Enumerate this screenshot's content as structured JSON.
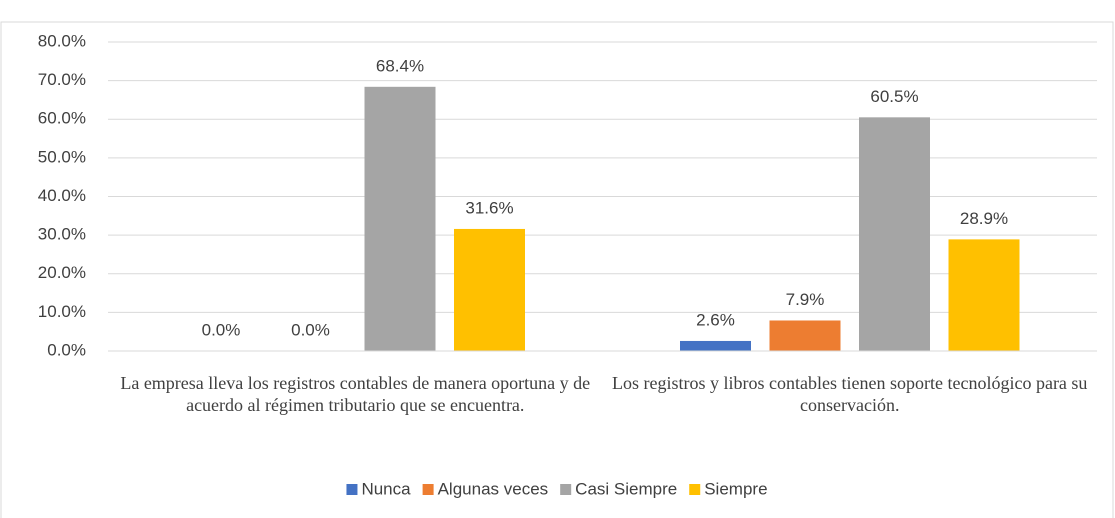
{
  "chart_data": {
    "type": "bar",
    "categories": [
      "La empresa lleva los registros contables de manera oportuna y de acuerdo al régimen tributario que se encuentra.",
      "Los registros y libros contables tienen soporte tecnológico para su conservación."
    ],
    "series": [
      {
        "name": "Nunca",
        "color": "#4472c4",
        "values": [
          0.0,
          2.6
        ],
        "value_labels": [
          "0.0%",
          "2.6%"
        ]
      },
      {
        "name": "Algunas veces",
        "color": "#ed7d31",
        "values": [
          0.0,
          7.9
        ],
        "value_labels": [
          "0.0%",
          "7.9%"
        ]
      },
      {
        "name": "Casi Siempre",
        "color": "#a5a5a5",
        "values": [
          68.4,
          60.5
        ],
        "value_labels": [
          "68.4%",
          "60.5%"
        ]
      },
      {
        "name": "Siempre",
        "color": "#ffc000",
        "values": [
          31.6,
          28.9
        ],
        "value_labels": [
          "31.6%",
          "28.9%"
        ]
      }
    ],
    "ylim": [
      0,
      80
    ],
    "yticks": [
      {
        "value": 0,
        "label": "0.0%"
      },
      {
        "value": 10,
        "label": "10.0%"
      },
      {
        "value": 20,
        "label": "20.0%"
      },
      {
        "value": 30,
        "label": "30.0%"
      },
      {
        "value": 40,
        "label": "40.0%"
      },
      {
        "value": 50,
        "label": "50.0%"
      },
      {
        "value": 60,
        "label": "60.0%"
      },
      {
        "value": 70,
        "label": "70.0%"
      },
      {
        "value": 80,
        "label": "80.0%"
      }
    ],
    "grid": true,
    "legend": "bottom"
  }
}
